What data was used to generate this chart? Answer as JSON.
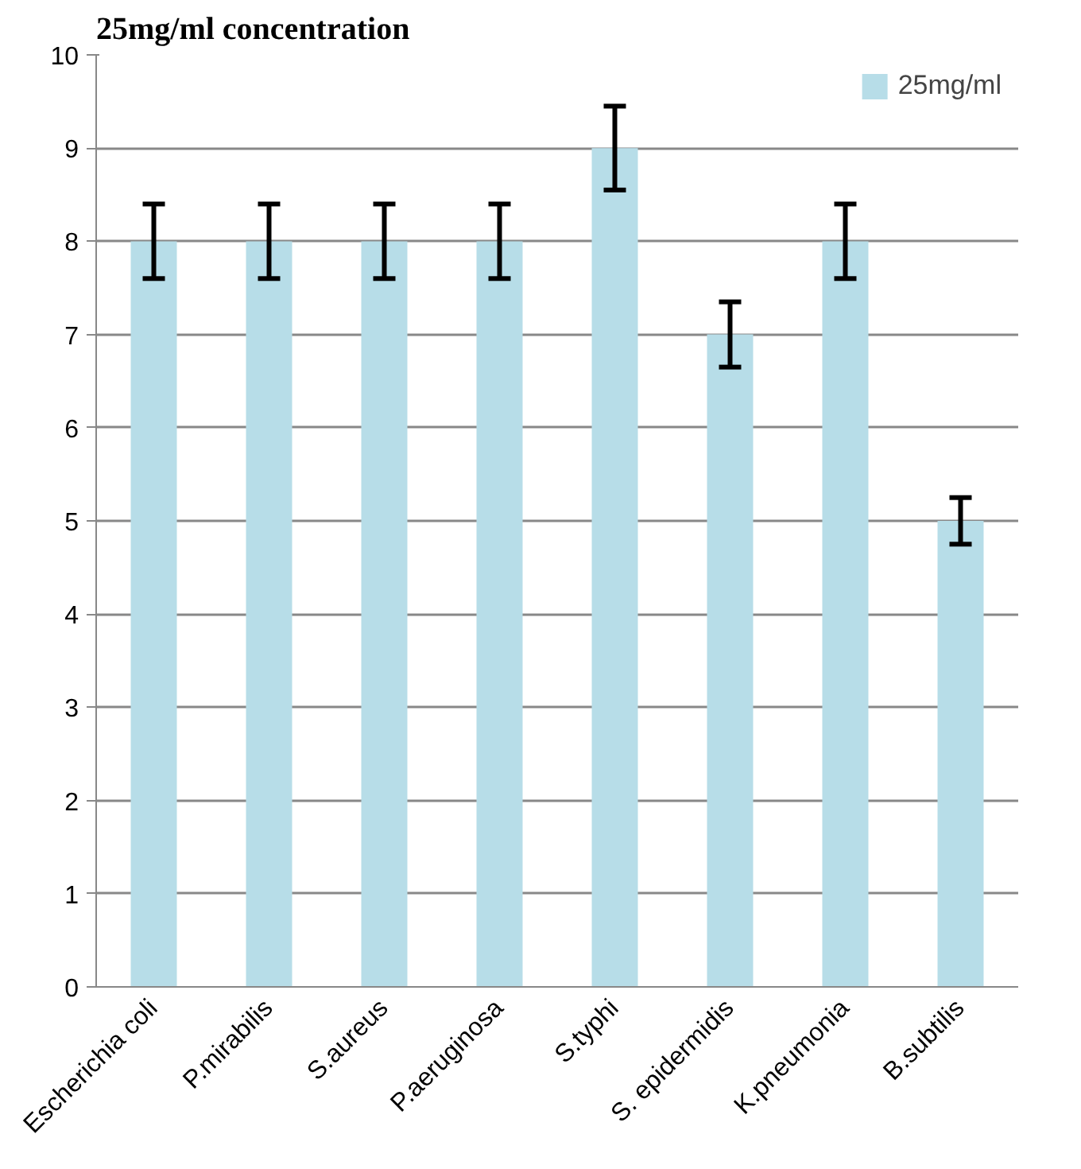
{
  "chart_data": {
    "type": "bar",
    "title": "25mg/ml concentration",
    "categories": [
      "Escherichia coli",
      "P.mirabilis",
      "S.aureus",
      "P.aeruginosa",
      "S.typhi",
      "S. epidermidis",
      "K.pneumonia",
      "B.subtilis"
    ],
    "series": [
      {
        "name": "25mg/ml",
        "color": "#b7dde8",
        "values": [
          8,
          8,
          8,
          8,
          9,
          7,
          8,
          5
        ],
        "errors": [
          0.4,
          0.4,
          0.4,
          0.4,
          0.45,
          0.35,
          0.4,
          0.25
        ]
      }
    ],
    "ylim": [
      0,
      10
    ],
    "yticks": [
      0,
      1,
      2,
      3,
      4,
      5,
      6,
      7,
      8,
      9,
      10
    ],
    "grid": "y",
    "legend": "top right"
  }
}
